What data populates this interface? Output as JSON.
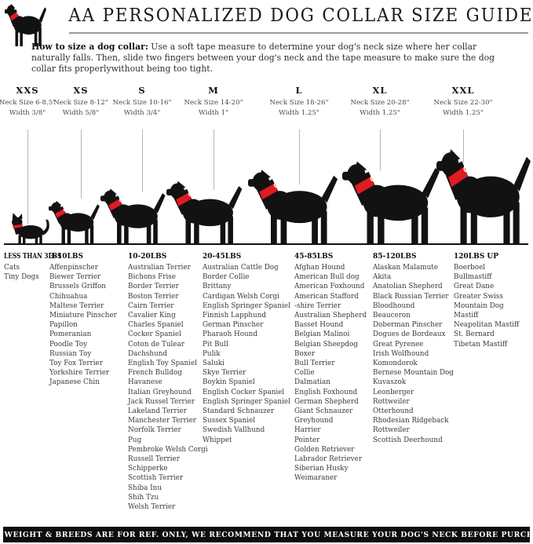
{
  "header": {
    "title": "AA PERSONALIZED DOG COLLAR SIZE GUIDE"
  },
  "icons": {
    "logo": "dog-with-red-collar-icon",
    "figures": [
      "cat",
      "chihuahua",
      "terrier",
      "spaniel",
      "retriever",
      "rottweiler",
      "great-dane"
    ]
  },
  "instructions": {
    "lead": "How to size a dog collar:",
    "body": " Use a soft tape measure to determine your dog's neck size where her collar naturally falls. Then, slide two fingers between your dog's neck and the tape measure to make sure the dog collar fits properlywithout being too tight."
  },
  "sizes": [
    {
      "name": "XXS",
      "neck": "Neck Size 6-8.5\"",
      "width": "Width 3/8\""
    },
    {
      "name": "XS",
      "neck": "Neck Size 8-12\"",
      "width": "Width 5/8\""
    },
    {
      "name": "S",
      "neck": "Neck Size 10-16\"",
      "width": "Width 3/4\""
    },
    {
      "name": "M",
      "neck": "Neck Size 14-20\"",
      "width": "Width 1\""
    },
    {
      "name": "L",
      "neck": "Neck Size 18-26\"",
      "width": "Width 1.25\""
    },
    {
      "name": "XL",
      "neck": "Neck Size 20-28\"",
      "width": "Width 1.25\""
    },
    {
      "name": "XXL",
      "neck": "Neck Size 22-30\"",
      "width": "Width 1.25\""
    }
  ],
  "weight_groups": [
    {
      "label": "LESS THAN 3LBS",
      "breeds": [
        "Cats",
        "Tiny Dogs"
      ]
    },
    {
      "label": "3-10LBS",
      "breeds": [
        "Affenpinscher",
        "Biewer Terrier",
        "Brussels Griffon",
        "Chihuahua",
        "Maltese Terrier",
        "Miniature Pinscher",
        "Papillon",
        "Pomeranian",
        "Poodle Toy",
        "Russian Toy",
        "Toy Fox Terrier",
        "Yorkshire Terrier",
        "Japanese Chin"
      ]
    },
    {
      "label": "10-20LBS",
      "breeds": [
        "Australian Terrier",
        "Bichons Frise",
        "Border Terrier",
        "Boston Terrier",
        "Cairn Terrier",
        "Cavalier King",
        "Charles Spaniel",
        "Cocker Spaniel",
        "Coton de Tulear",
        "Dachshund",
        "English Toy Spaniel",
        "French Bulldog",
        "Havanese",
        "Italian Greyhound",
        "Jack Russel Terrier",
        "Lakeland Terrier",
        "Manchester Terrier",
        "Norfolk Terrier",
        "Pug",
        "Pembroke Welsh Corgi",
        "Russell Terrier",
        "Schipperke",
        "Scottish Terrier",
        "Shiba Inu",
        "Shih Tzu",
        "Welsh Terrier"
      ]
    },
    {
      "label": "20-45LBS",
      "breeds": [
        "Australian Cattle Dog",
        "Border Collie",
        "Brittany",
        "Cardigan Welsh Corgi",
        "English Springer Spaniel",
        "Finnish Lapphund",
        "German Pinscher",
        "Pharaoh Hound",
        "Pit Bull",
        "Pulik",
        "Saluki",
        "Skye Terrier",
        "Boykin Spaniel",
        "English Cocker Spaniel",
        "English Springer Spaniel",
        "Standard Schnauzer",
        "Sussex Spaniel",
        "Swedish Vallhund",
        "Whippet"
      ]
    },
    {
      "label": "45-85LBS",
      "breeds": [
        "Afghan Hound",
        "American Bull dog",
        "American Foxhound",
        "American Stafford",
        "-shire Terrier",
        "Australian Shepherd",
        "Basset Hound",
        "Belgian Malinoi",
        "Belgian Sheepdog",
        "Boxer",
        "Bull Terrier",
        "Collie",
        "Dalmatian",
        "English Foxhound",
        "German Shepherd",
        "Giant Schnauzer",
        "Greyhound",
        "Harrier",
        "Pointer",
        "Golden Retriever",
        "Labrador Retriever",
        "Siberian Husky",
        "Weimaraner"
      ]
    },
    {
      "label": "85-120LBS",
      "breeds": [
        "Alaskan Malamute",
        "Akita",
        "Anatolian Shepherd",
        "Black Russian Terrier",
        "Bloodhound",
        "Beauceron",
        "Doberman Pinscher",
        "Dogues de Bordeaux",
        "Great Pyrenee",
        "Irish Wolfhound",
        "Komondorok",
        "Bernese Mountain Dog",
        "Kuvaszok",
        "Leonberger",
        "Rottweiler",
        "Otterhound",
        "Rhodesian Ridgeback",
        "Rottweiler",
        "Scottish Deerhound"
      ]
    },
    {
      "label": "120LBS UP",
      "breeds": [
        "Boerboel",
        "Bullmastiff",
        "Great Dane",
        "Greater Swiss",
        "Mountain Dog",
        "Mastiff",
        "Neapolitan Mastiff",
        "St. Bernard",
        "Tibetan Mastiff"
      ]
    }
  ],
  "footer": {
    "text": "DOG WEIGHT & BREEDS ARE FOR REF. ONLY, WE RECOMMEND THAT YOU MEASURE YOUR DOG'S NECK BEFORE PURCHASE"
  },
  "colors": {
    "collar_red": "#e01b22",
    "line_gray": "#b5b5b5",
    "ink": "#111111"
  }
}
